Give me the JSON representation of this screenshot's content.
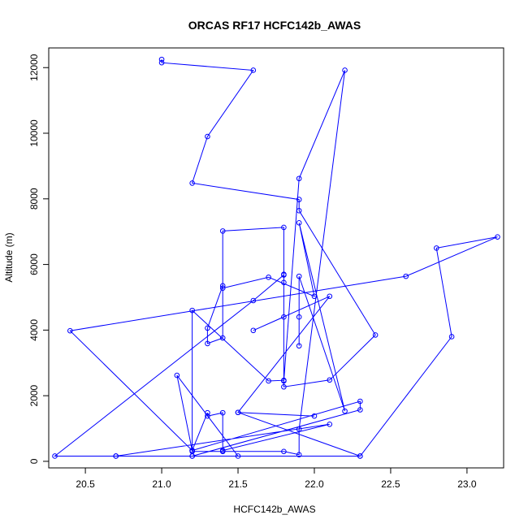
{
  "chart_data": {
    "type": "line",
    "title": "ORCAS RF17 HCFC142b_AWAS",
    "xlabel": "HCFC142b_AWAS",
    "ylabel": "Altitude (m)",
    "xlim": [
      20.26,
      23.24
    ],
    "ylim": [
      -200,
      12600
    ],
    "x_ticks": [
      20.5,
      21.0,
      21.5,
      22.0,
      22.5,
      23.0
    ],
    "x_tick_labels": [
      "20.5",
      "21.0",
      "21.5",
      "22.0",
      "22.5",
      "23.0"
    ],
    "y_ticks": [
      0,
      2000,
      4000,
      6000,
      8000,
      10000,
      12000
    ],
    "y_tick_labels": [
      "0",
      "2000",
      "4000",
      "6000",
      "8000",
      "10000",
      "12000"
    ],
    "grid": false,
    "legend": "none",
    "color": "#0000ff",
    "series": [
      {
        "x": [
          21.0,
          21.0,
          21.6,
          21.3,
          21.2,
          21.9,
          21.9,
          22.4,
          22.1,
          21.8,
          21.8,
          21.9,
          22.2,
          21.9,
          21.9,
          21.8,
          21.4,
          21.2,
          21.2,
          21.1,
          21.5,
          21.2,
          21.2,
          22.3,
          22.3,
          21.2,
          21.2,
          21.7,
          21.8,
          21.8,
          21.8,
          21.6,
          20.3,
          22.3,
          20.7,
          20.7,
          22.1,
          21.4,
          21.4,
          21.3,
          21.3,
          21.2,
          20.4,
          22.6,
          23.2,
          22.8,
          22.9,
          22.3,
          21.5,
          22.0,
          21.5,
          22.1,
          21.6,
          21.8,
          21.8,
          21.8,
          21.4,
          21.4,
          21.3,
          21.3,
          21.4,
          21.4,
          21.7,
          22.0,
          21.9,
          22.2,
          21.9,
          21.9,
          21.9
        ],
        "y": [
          12250,
          12150,
          11920,
          9900,
          8480,
          7980,
          7640,
          3850,
          2480,
          2270,
          2450,
          8620,
          11920,
          980,
          200,
          300,
          300,
          300,
          330,
          2620,
          160,
          160,
          160,
          1570,
          1830,
          330,
          4600,
          2450,
          2470,
          5450,
          5680,
          4900,
          160,
          160,
          160,
          160,
          1130,
          330,
          1480,
          1380,
          1480,
          330,
          3980,
          5640,
          6840,
          6500,
          3800,
          160,
          1490,
          1380,
          1490,
          5030,
          3990,
          4400,
          5700,
          7130,
          7020,
          3760,
          3590,
          4060,
          5350,
          5280,
          5610,
          5030,
          7270,
          1530,
          5640,
          3520,
          4400
        ]
      }
    ]
  }
}
